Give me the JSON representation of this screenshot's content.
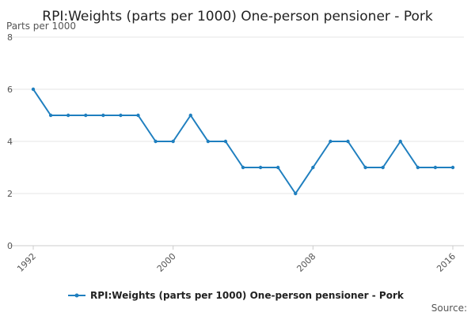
{
  "chart_data": {
    "type": "line",
    "title": "RPI:Weights (parts per 1000) One-person pensioner - Pork",
    "ylabel": "Parts per 1000",
    "xlabel": "",
    "x": [
      1992,
      1993,
      1994,
      1995,
      1996,
      1997,
      1998,
      1999,
      2000,
      2001,
      2002,
      2003,
      2004,
      2005,
      2006,
      2007,
      2008,
      2009,
      2010,
      2011,
      2012,
      2013,
      2014,
      2015,
      2016
    ],
    "x_tick_labels": [
      "1992",
      "2000",
      "2008",
      "2016"
    ],
    "y_tick_labels": [
      "0",
      "2",
      "4",
      "6",
      "8"
    ],
    "ylim": [
      0,
      8
    ],
    "grid": true,
    "legend_position": "bottom",
    "series": [
      {
        "name": "RPI:Weights (parts per 1000) One-person pensioner - Pork",
        "color": "#1f7fbf",
        "values": [
          6,
          5,
          5,
          5,
          5,
          5,
          5,
          4,
          4,
          5,
          4,
          4,
          3,
          3,
          3,
          2,
          3,
          4,
          4,
          3,
          3,
          4,
          3,
          3,
          3
        ]
      }
    ],
    "source_label": "Source:"
  }
}
